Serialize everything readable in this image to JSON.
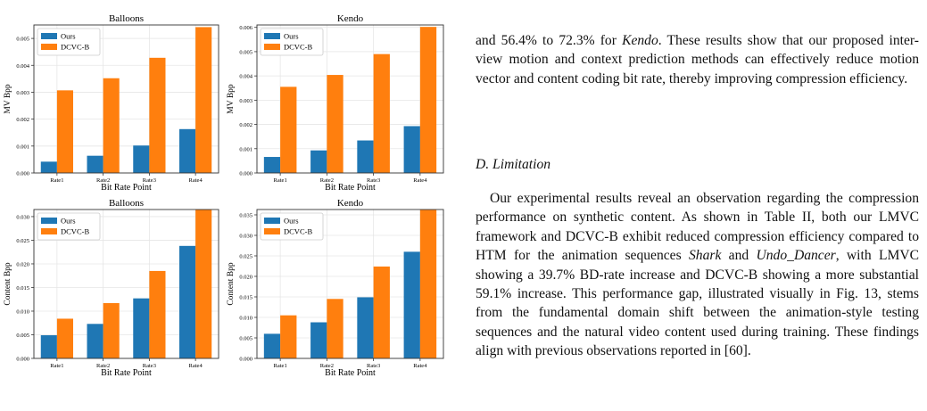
{
  "chart_data": [
    {
      "type": "bar",
      "title": "Balloons",
      "xlabel": "Bit Rate Point",
      "ylabel": "MV Bpp",
      "categories": [
        "Rate1",
        "Rate2",
        "Rate3",
        "Rate4"
      ],
      "series": [
        {
          "name": "Ours",
          "values": [
            0.00042,
            0.00064,
            0.00102,
            0.00163
          ]
        },
        {
          "name": "DCVC-B",
          "values": [
            0.00307,
            0.00352,
            0.00428,
            0.00542
          ]
        }
      ],
      "ylim": [
        0,
        0.0055
      ],
      "yticks": [
        "0.000",
        "0.001",
        "0.002",
        "0.003",
        "0.004",
        "0.005"
      ],
      "ytick_values": [
        0,
        0.001,
        0.002,
        0.003,
        0.004,
        0.005
      ],
      "grid": true,
      "legend": "top-left"
    },
    {
      "type": "bar",
      "title": "Kendo",
      "xlabel": "Bit Rate Point",
      "ylabel": "MV Bpp",
      "categories": [
        "Rate1",
        "Rate2",
        "Rate3",
        "Rate4"
      ],
      "series": [
        {
          "name": "Ours",
          "values": [
            0.00066,
            0.00093,
            0.00134,
            0.00193
          ]
        },
        {
          "name": "DCVC-B",
          "values": [
            0.00355,
            0.00404,
            0.0049,
            0.00602
          ]
        }
      ],
      "ylim": [
        0,
        0.0061
      ],
      "yticks": [
        "0.000",
        "0.001",
        "0.002",
        "0.003",
        "0.004",
        "0.005",
        "0.006"
      ],
      "ytick_values": [
        0,
        0.001,
        0.002,
        0.003,
        0.004,
        0.005,
        0.006
      ],
      "grid": true,
      "legend": "top-left"
    },
    {
      "type": "bar",
      "title": "Balloons",
      "xlabel": "Bit Rate Point",
      "ylabel": "Content Bpp",
      "categories": [
        "Rate1",
        "Rate2",
        "Rate3",
        "Rate4"
      ],
      "series": [
        {
          "name": "Ours",
          "values": [
            0.0049,
            0.0073,
            0.0127,
            0.0238
          ]
        },
        {
          "name": "DCVC-B",
          "values": [
            0.0084,
            0.0117,
            0.0185,
            0.0315
          ]
        }
      ],
      "ylim": [
        0,
        0.0315
      ],
      "yticks": [
        "0.000",
        "0.005",
        "0.010",
        "0.015",
        "0.020",
        "0.025",
        "0.030"
      ],
      "ytick_values": [
        0,
        0.005,
        0.01,
        0.015,
        0.02,
        0.025,
        0.03
      ],
      "grid": true,
      "legend": "top-left"
    },
    {
      "type": "bar",
      "title": "Kendo",
      "xlabel": "Bit Rate Point",
      "ylabel": "Content Bpp",
      "categories": [
        "Rate1",
        "Rate2",
        "Rate3",
        "Rate4"
      ],
      "series": [
        {
          "name": "Ours",
          "values": [
            0.006,
            0.0088,
            0.0149,
            0.026
          ]
        },
        {
          "name": "DCVC-B",
          "values": [
            0.0105,
            0.0145,
            0.0224,
            0.0362
          ]
        }
      ],
      "ylim": [
        0,
        0.0363
      ],
      "yticks": [
        "0.000",
        "0.005",
        "0.010",
        "0.015",
        "0.020",
        "0.025",
        "0.030",
        "0.035"
      ],
      "ytick_values": [
        0,
        0.005,
        0.01,
        0.015,
        0.02,
        0.025,
        0.03,
        0.035
      ],
      "grid": true,
      "legend": "top-left"
    }
  ],
  "colors": {
    "ours": "#1f77b4",
    "dcvc": "#ff7f0e",
    "grid": "#e6e6e6"
  },
  "text": {
    "para1_a": "and 56.4% to 72.3% for ",
    "para1_em": "Kendo",
    "para1_b": ". These results show that our proposed inter-view motion and context prediction methods can effectively reduce motion vector and content coding bit rate, thereby improving compression efficiency.",
    "section_heading": "D. Limitation",
    "para2_a": "Our experimental results reveal an observation regarding the compression performance on synthetic content. As shown in Table II, both our LMVC framework and DCVC-B exhibit reduced compression efficiency compared to HTM for the animation sequences ",
    "para2_em1": "Shark",
    "para2_and": " and ",
    "para2_em2": "Undo_Dancer",
    "para2_b": ", with LMVC showing a 39.7% BD-rate increase and DCVC-B showing a more substantial 59.1% increase. This performance gap, illustrated visually in Fig. 13, stems from the fundamental domain shift between the animation-style testing sequences and the natural video content used during training. These findings align with previous observations reported in [60]."
  }
}
